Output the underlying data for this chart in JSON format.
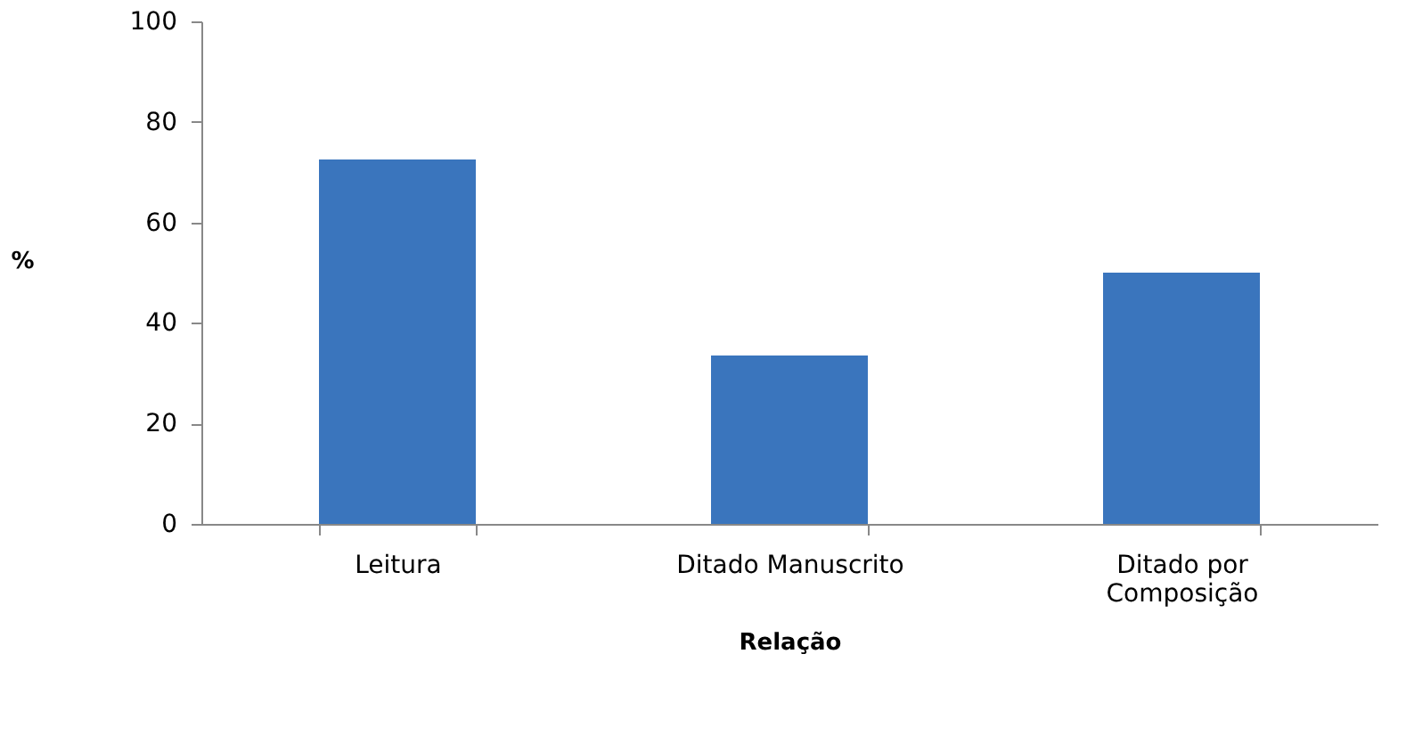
{
  "chart_data": {
    "type": "bar",
    "xlabel": "Relação",
    "ylabel": "%",
    "categories": [
      "Leitura",
      "Ditado Manuscrito",
      "Ditado por\nComposição"
    ],
    "values": [
      72.5,
      33.5,
      50
    ],
    "color": "#3a75bd",
    "ylim": [
      0,
      100
    ],
    "yticks": [
      0,
      20,
      40,
      60,
      80,
      100
    ],
    "grid": false
  }
}
